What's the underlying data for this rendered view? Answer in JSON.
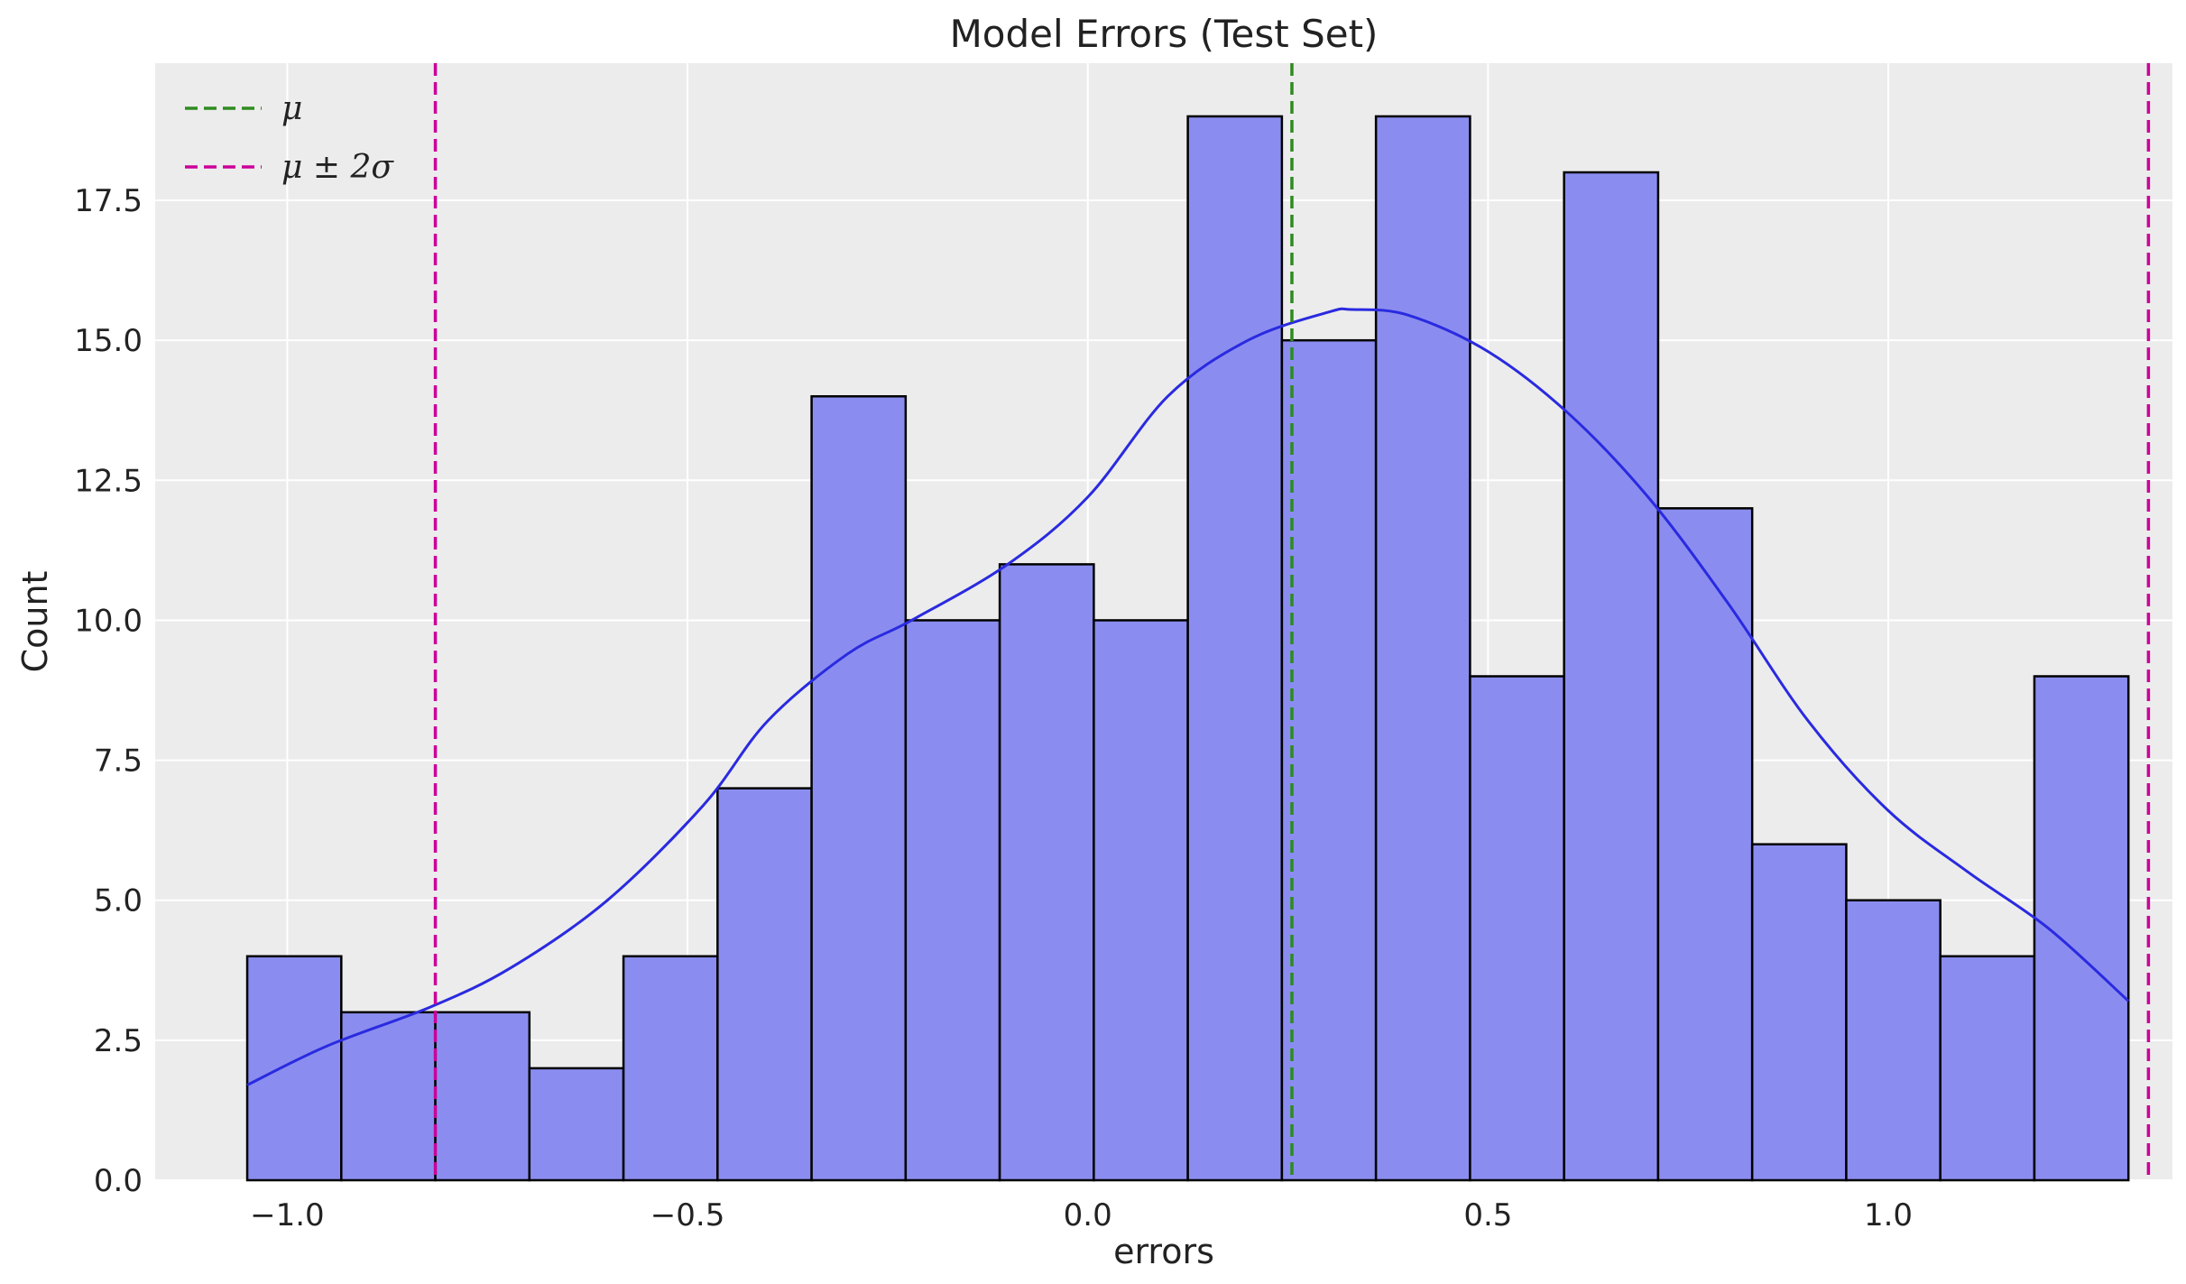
{
  "chart_data": {
    "type": "bar",
    "subtype": "histogram",
    "title": "Model Errors (Test Set)",
    "xlabel": "errors",
    "ylabel": "Count",
    "xlim": [
      -1.165,
      1.355
    ],
    "ylim": [
      0,
      19.95
    ],
    "grid": true,
    "legend_position": "top-left",
    "x_ticks": [
      -1.0,
      -0.5,
      0.0,
      0.5,
      1.0
    ],
    "x_tick_labels": [
      "−1.0",
      "−0.5",
      "0.0",
      "0.5",
      "1.0"
    ],
    "y_ticks": [
      0,
      2.5,
      5,
      7.5,
      10,
      12.5,
      15,
      17.5
    ],
    "y_tick_labels": [
      "0.0",
      "2.5",
      "5.0",
      "7.5",
      "10.0",
      "12.5",
      "15.0",
      "17.5"
    ],
    "bin_start": -1.05,
    "bin_width": 0.1175,
    "counts": [
      4,
      3,
      3,
      2,
      4,
      7,
      14,
      10,
      11,
      10,
      19,
      15,
      19,
      9,
      18,
      12,
      6,
      5,
      4,
      9
    ],
    "bar_fill_color": "#8a8def",
    "bar_edge_color": "#000000",
    "kde": {
      "color": "#2a2ae0",
      "x": [
        -1.05,
        -0.95,
        -0.82,
        -0.72,
        -0.6,
        -0.48,
        -0.4,
        -0.3,
        -0.22,
        -0.1,
        0.0,
        0.1,
        0.2,
        0.3,
        0.33,
        0.4,
        0.5,
        0.6,
        0.7,
        0.8,
        0.9,
        1.0,
        1.1,
        1.2,
        1.3
      ],
      "y": [
        1.7,
        2.4,
        3.1,
        3.8,
        5.0,
        6.7,
        8.2,
        9.4,
        10.0,
        11.0,
        12.2,
        14.0,
        15.0,
        15.5,
        15.55,
        15.45,
        14.8,
        13.7,
        12.2,
        10.3,
        8.2,
        6.6,
        5.5,
        4.5,
        3.2
      ]
    },
    "reference_lines": [
      {
        "name": "μ",
        "x": 0.255,
        "color": "#2e8b1f",
        "style": "dashed"
      },
      {
        "name": "μ ± 2σ",
        "x": -0.815,
        "color": "#cc0099",
        "style": "dashed"
      },
      {
        "name": "μ ± 2σ",
        "x": 1.325,
        "color": "#cc0099",
        "style": "dashed"
      }
    ],
    "legend": [
      {
        "label": "μ",
        "color": "#2e8b1f"
      },
      {
        "label": "μ ± 2σ",
        "color": "#cc0099"
      }
    ],
    "plot_background": "#ececec",
    "grid_color": "#ffffff"
  }
}
